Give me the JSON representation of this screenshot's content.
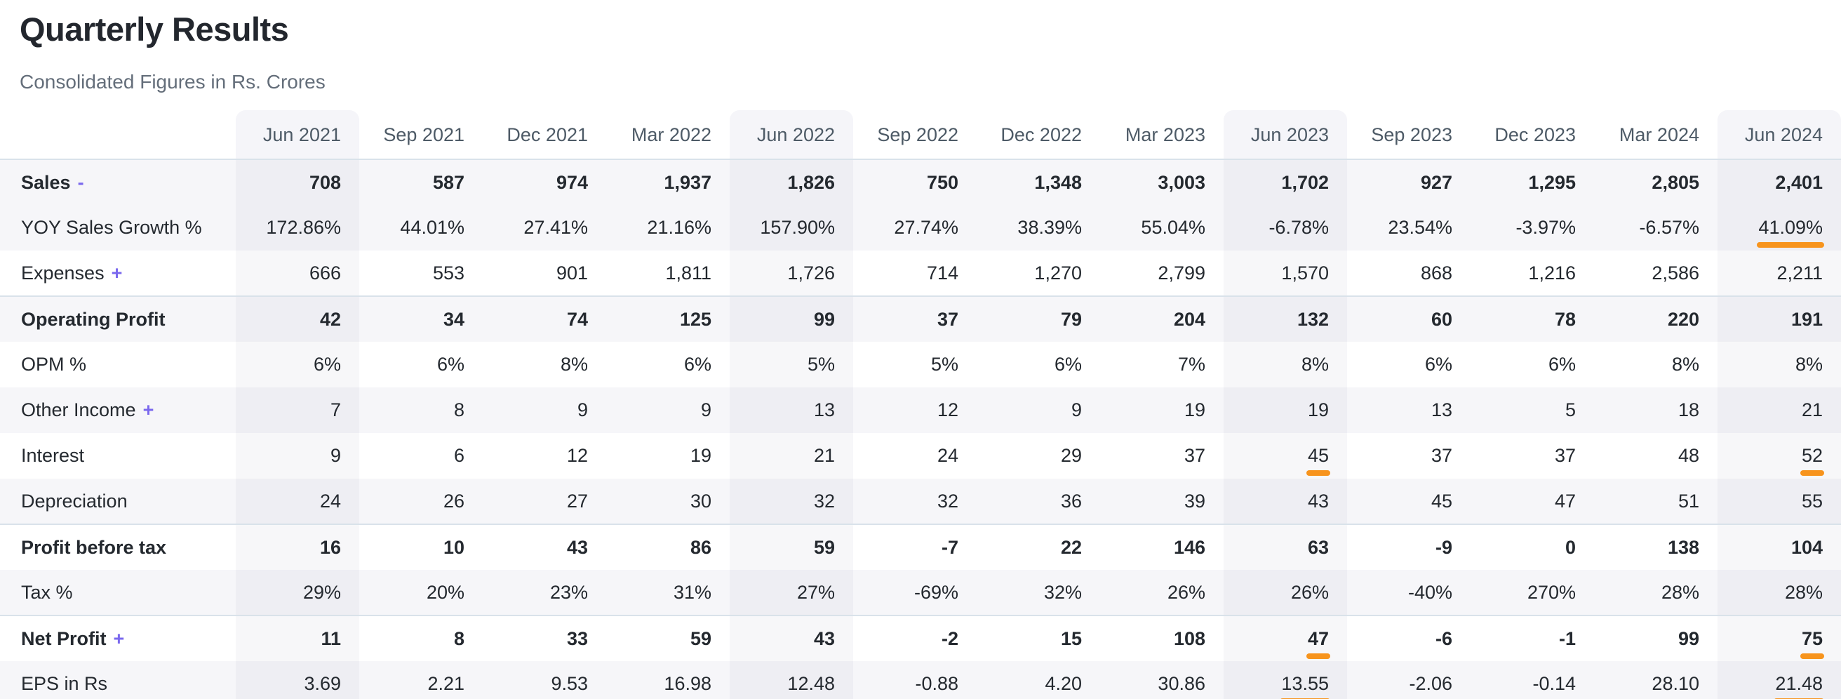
{
  "page": {
    "title": "Quarterly Results",
    "subtitle": "Consolidated Figures in Rs. Crores"
  },
  "colors": {
    "accent_orange": "#f7941d",
    "link_purple": "#7a68ee",
    "stripe_bg": "#f6f6f9",
    "rule_line": "#d9e2ea"
  },
  "table": {
    "columns": [
      "Jun 2021",
      "Sep 2021",
      "Dec 2021",
      "Mar 2022",
      "Jun 2022",
      "Sep 2022",
      "Dec 2022",
      "Mar 2023",
      "Jun 2023",
      "Sep 2023",
      "Dec 2023",
      "Mar 2024",
      "Jun 2024"
    ],
    "jun_columns": [
      0,
      4,
      8,
      12
    ],
    "rows": [
      {
        "label": "Sales",
        "toggle": "-",
        "bold": true,
        "section": false,
        "values": [
          "708",
          "587",
          "974",
          "1,937",
          "1,826",
          "750",
          "1,348",
          "3,003",
          "1,702",
          "927",
          "1,295",
          "2,805",
          "2,401"
        ],
        "highlights": []
      },
      {
        "label": "YOY Sales Growth %",
        "toggle": "",
        "bold": false,
        "section": false,
        "values": [
          "172.86%",
          "44.01%",
          "27.41%",
          "21.16%",
          "157.90%",
          "27.74%",
          "38.39%",
          "55.04%",
          "-6.78%",
          "23.54%",
          "-3.97%",
          "-6.57%",
          "41.09%"
        ],
        "highlights": [
          12
        ]
      },
      {
        "label": "Expenses",
        "toggle": "+",
        "bold": false,
        "section": false,
        "values": [
          "666",
          "553",
          "901",
          "1,811",
          "1,726",
          "714",
          "1,270",
          "2,799",
          "1,570",
          "868",
          "1,216",
          "2,586",
          "2,211"
        ],
        "highlights": []
      },
      {
        "label": "Operating Profit",
        "toggle": "",
        "bold": true,
        "section": true,
        "values": [
          "42",
          "34",
          "74",
          "125",
          "99",
          "37",
          "79",
          "204",
          "132",
          "60",
          "78",
          "220",
          "191"
        ],
        "highlights": []
      },
      {
        "label": "OPM %",
        "toggle": "",
        "bold": false,
        "section": false,
        "values": [
          "6%",
          "6%",
          "8%",
          "6%",
          "5%",
          "5%",
          "6%",
          "7%",
          "8%",
          "6%",
          "6%",
          "8%",
          "8%"
        ],
        "highlights": []
      },
      {
        "label": "Other Income",
        "toggle": "+",
        "bold": false,
        "section": false,
        "values": [
          "7",
          "8",
          "9",
          "9",
          "13",
          "12",
          "9",
          "19",
          "19",
          "13",
          "5",
          "18",
          "21"
        ],
        "highlights": []
      },
      {
        "label": "Interest",
        "toggle": "",
        "bold": false,
        "section": false,
        "values": [
          "9",
          "6",
          "12",
          "19",
          "21",
          "24",
          "29",
          "37",
          "45",
          "37",
          "37",
          "48",
          "52"
        ],
        "highlights": [
          8,
          12
        ]
      },
      {
        "label": "Depreciation",
        "toggle": "",
        "bold": false,
        "section": false,
        "values": [
          "24",
          "26",
          "27",
          "30",
          "32",
          "32",
          "36",
          "39",
          "43",
          "45",
          "47",
          "51",
          "55"
        ],
        "highlights": []
      },
      {
        "label": "Profit before tax",
        "toggle": "",
        "bold": true,
        "section": true,
        "values": [
          "16",
          "10",
          "43",
          "86",
          "59",
          "-7",
          "22",
          "146",
          "63",
          "-9",
          "0",
          "138",
          "104"
        ],
        "highlights": []
      },
      {
        "label": "Tax %",
        "toggle": "",
        "bold": false,
        "section": false,
        "values": [
          "29%",
          "20%",
          "23%",
          "31%",
          "27%",
          "-69%",
          "32%",
          "26%",
          "26%",
          "-40%",
          "270%",
          "28%",
          "28%"
        ],
        "highlights": []
      },
      {
        "label": "Net Profit",
        "toggle": "+",
        "bold": true,
        "section": true,
        "values": [
          "11",
          "8",
          "33",
          "59",
          "43",
          "-2",
          "15",
          "108",
          "47",
          "-6",
          "-1",
          "99",
          "75"
        ],
        "highlights": [
          8,
          12
        ]
      },
      {
        "label": "EPS in Rs",
        "toggle": "",
        "bold": false,
        "section": false,
        "values": [
          "3.69",
          "2.21",
          "9.53",
          "16.98",
          "12.48",
          "-0.88",
          "4.20",
          "30.86",
          "13.55",
          "-2.06",
          "-0.14",
          "28.10",
          "21.48"
        ],
        "highlights": [
          8,
          12
        ]
      }
    ]
  }
}
